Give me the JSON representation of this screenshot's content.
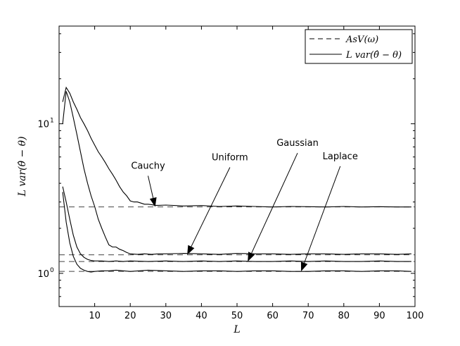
{
  "chart_data": {
    "type": "line",
    "title": "",
    "xlabel": "L",
    "ylabel": "L var(θ̂ − θ)",
    "xlim": [
      0,
      100
    ],
    "ylim": [
      0.6,
      45
    ],
    "yscale": "log",
    "grid": false,
    "legend_position": "top-right",
    "x_ticks": [
      10,
      20,
      30,
      40,
      50,
      60,
      70,
      80,
      90,
      100
    ],
    "x_tick_labels": [
      "10",
      "20",
      "30",
      "40",
      "50",
      "60",
      "70",
      "80",
      "90",
      "100"
    ],
    "y_ticks": [
      1,
      10
    ],
    "y_tick_labels": [
      {
        "base": "10",
        "exp": "0"
      },
      {
        "base": "10",
        "exp": "1"
      }
    ],
    "legend": [
      {
        "label": "AsV(ω)",
        "style": "dashed"
      },
      {
        "label": "L var(θ̂ − θ)",
        "style": "solid"
      }
    ],
    "asymptotes": [
      {
        "name": "Cauchy",
        "value": 2.78
      },
      {
        "name": "Uniform",
        "value": 1.33
      },
      {
        "name": "Gaussian",
        "value": 1.2
      },
      {
        "name": "Laplace",
        "value": 1.03
      }
    ],
    "series": [
      {
        "name": "Cauchy",
        "x": [
          1,
          2,
          3,
          4,
          5,
          6,
          7,
          8,
          9,
          10,
          11,
          12,
          13,
          14,
          15,
          16,
          17,
          18,
          19,
          20,
          21,
          22,
          23,
          24,
          25,
          26,
          27,
          28,
          30,
          35,
          40,
          45,
          50,
          55,
          60,
          65,
          70,
          75,
          80,
          85,
          90,
          95,
          99
        ],
        "values": [
          14,
          17.5,
          16,
          14,
          12.5,
          11,
          10,
          9,
          8,
          7.2,
          6.5,
          6,
          5.5,
          5,
          4.6,
          4.2,
          3.8,
          3.5,
          3.3,
          3.05,
          3.0,
          3.0,
          2.95,
          2.9,
          2.9,
          2.88,
          2.85,
          2.85,
          2.86,
          2.82,
          2.84,
          2.8,
          2.82,
          2.8,
          2.78,
          2.8,
          2.79,
          2.78,
          2.8,
          2.78,
          2.79,
          2.78,
          2.78
        ]
      },
      {
        "name": "Uniform",
        "x": [
          1,
          2,
          3,
          4,
          5,
          6,
          7,
          8,
          9,
          10,
          11,
          12,
          13,
          14,
          15,
          16,
          17,
          18,
          19,
          20,
          22,
          24,
          26,
          28,
          30,
          35,
          40,
          45,
          50,
          55,
          60,
          65,
          70,
          75,
          80,
          85,
          90,
          95,
          99
        ],
        "values": [
          10,
          16.5,
          14,
          11,
          8.5,
          6.5,
          5,
          4,
          3.3,
          2.8,
          2.3,
          2.0,
          1.75,
          1.55,
          1.5,
          1.5,
          1.45,
          1.42,
          1.38,
          1.35,
          1.34,
          1.35,
          1.34,
          1.35,
          1.35,
          1.36,
          1.35,
          1.34,
          1.36,
          1.35,
          1.35,
          1.34,
          1.35,
          1.35,
          1.34,
          1.35,
          1.35,
          1.34,
          1.35
        ]
      },
      {
        "name": "Gaussian",
        "x": [
          1,
          2,
          3,
          4,
          5,
          6,
          7,
          8,
          9,
          10,
          12,
          14,
          16,
          18,
          20,
          25,
          30,
          35,
          40,
          45,
          50,
          55,
          60,
          65,
          70,
          75,
          80,
          85,
          90,
          95,
          99
        ],
        "values": [
          3.8,
          3.0,
          2.3,
          1.8,
          1.5,
          1.35,
          1.28,
          1.24,
          1.22,
          1.21,
          1.21,
          1.2,
          1.21,
          1.2,
          1.21,
          1.2,
          1.21,
          1.2,
          1.21,
          1.2,
          1.21,
          1.2,
          1.2,
          1.21,
          1.2,
          1.21,
          1.2,
          1.2,
          1.21,
          1.2,
          1.2
        ]
      },
      {
        "name": "Laplace",
        "x": [
          1,
          2,
          3,
          4,
          5,
          6,
          7,
          8,
          9,
          10,
          12,
          14,
          16,
          18,
          20,
          25,
          30,
          35,
          40,
          45,
          50,
          55,
          60,
          65,
          70,
          75,
          80,
          85,
          90,
          95,
          99
        ],
        "values": [
          3.5,
          2.2,
          1.6,
          1.3,
          1.15,
          1.08,
          1.05,
          1.03,
          1.02,
          1.03,
          1.04,
          1.04,
          1.05,
          1.04,
          1.03,
          1.05,
          1.04,
          1.03,
          1.04,
          1.04,
          1.03,
          1.04,
          1.04,
          1.03,
          1.03,
          1.04,
          1.04,
          1.03,
          1.04,
          1.04,
          1.03
        ]
      }
    ],
    "annotations": [
      {
        "text": "Cauchy",
        "label_x": 25,
        "label_y": 5.0,
        "point_x": 27,
        "point_y": 2.78
      },
      {
        "text": "Uniform",
        "label_x": 48,
        "label_y": 5.7,
        "point_x": 36,
        "point_y": 1.33
      },
      {
        "text": "Gaussian",
        "label_x": 67,
        "label_y": 7.1,
        "point_x": 53,
        "point_y": 1.2
      },
      {
        "text": "Laplace",
        "label_x": 79,
        "label_y": 5.8,
        "point_x": 68,
        "point_y": 1.03
      }
    ]
  }
}
